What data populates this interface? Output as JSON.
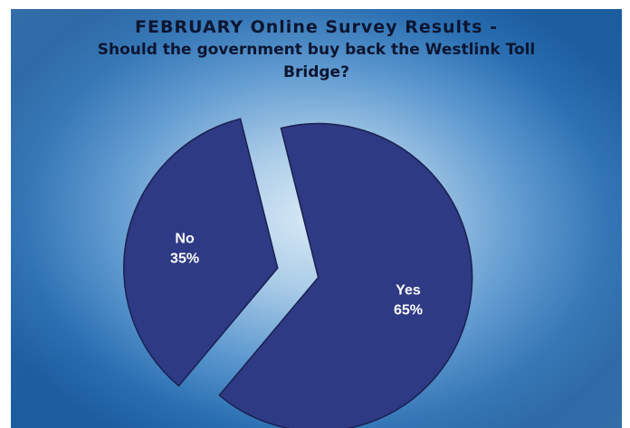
{
  "chart_data": {
    "type": "pie",
    "title": "FEBRUARY Online Survey Results -",
    "subtitle": "Should the government buy back the Westlink Toll Bridge?",
    "slices": [
      {
        "label": "No",
        "value": 35,
        "value_label": "35%",
        "exploded": true
      },
      {
        "label": "Yes",
        "value": 65,
        "value_label": "65%",
        "exploded": true
      }
    ],
    "colors": {
      "slice_fill": "#2e3a84",
      "slice_edge": "#1a2050",
      "title_text": "#0d1530",
      "label_text": "#ffffff"
    }
  }
}
